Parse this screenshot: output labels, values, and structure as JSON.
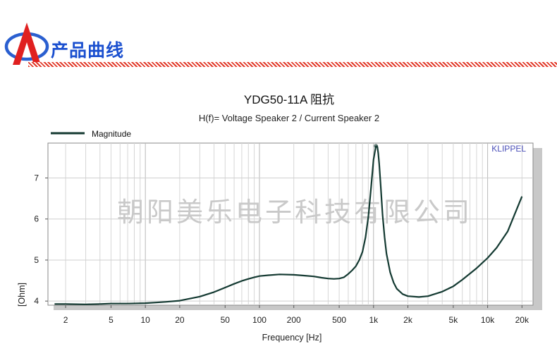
{
  "header": {
    "title": "产品曲线",
    "logo_icon": "company-logo-icon",
    "colors": {
      "title": "#1a4fcf",
      "logo_blue": "#2a5fd0",
      "logo_red": "#e02020",
      "divider": "#e23a2a"
    }
  },
  "chart_data": {
    "type": "line",
    "title": "YDG50-11A 阻抗",
    "subtitle": "H(f)= Voltage Speaker 2 / Current Speaker 2",
    "xlabel": "Frequency [Hz]",
    "ylabel": "[Ohm]",
    "xscale": "log",
    "xlim": [
      1.4,
      25000
    ],
    "ylim": [
      3.9,
      7.85
    ],
    "x_ticks": [
      {
        "v": 2,
        "label": "2"
      },
      {
        "v": 5,
        "label": "5"
      },
      {
        "v": 10,
        "label": "10"
      },
      {
        "v": 20,
        "label": "20"
      },
      {
        "v": 50,
        "label": "50"
      },
      {
        "v": 100,
        "label": "100"
      },
      {
        "v": 200,
        "label": "200"
      },
      {
        "v": 500,
        "label": "500"
      },
      {
        "v": 1000,
        "label": "1k"
      },
      {
        "v": 2000,
        "label": "2k"
      },
      {
        "v": 5000,
        "label": "5k"
      },
      {
        "v": 10000,
        "label": "10k"
      },
      {
        "v": 20000,
        "label": "20k"
      }
    ],
    "y_ticks": [
      4,
      5,
      6,
      7
    ],
    "grid": true,
    "legend_position": "top-left",
    "watermark": "朝阳美乐电子科技有限公司",
    "brand_label": "KLIPPEL",
    "series": [
      {
        "name": "Magnitude",
        "color": "#143a32",
        "x": [
          1.6,
          2,
          3,
          4,
          5,
          7,
          10,
          15,
          20,
          30,
          40,
          50,
          60,
          70,
          80,
          90,
          100,
          120,
          150,
          200,
          250,
          300,
          350,
          400,
          450,
          500,
          550,
          600,
          650,
          700,
          750,
          800,
          850,
          900,
          950,
          1000,
          1050,
          1080,
          1100,
          1120,
          1150,
          1200,
          1250,
          1300,
          1400,
          1500,
          1600,
          1800,
          2000,
          2500,
          3000,
          4000,
          5000,
          6000,
          8000,
          10000,
          12000,
          15000,
          20000
        ],
        "y": [
          3.93,
          3.93,
          3.92,
          3.93,
          3.94,
          3.94,
          3.95,
          3.98,
          4.01,
          4.11,
          4.22,
          4.33,
          4.42,
          4.49,
          4.54,
          4.58,
          4.61,
          4.63,
          4.65,
          4.64,
          4.62,
          4.6,
          4.57,
          4.55,
          4.54,
          4.55,
          4.58,
          4.66,
          4.75,
          4.85,
          5.0,
          5.2,
          5.55,
          6.05,
          6.75,
          7.45,
          7.78,
          7.76,
          7.6,
          7.35,
          6.9,
          6.1,
          5.55,
          5.15,
          4.7,
          4.45,
          4.3,
          4.17,
          4.12,
          4.1,
          4.12,
          4.23,
          4.36,
          4.52,
          4.8,
          5.05,
          5.3,
          5.7,
          6.55
        ]
      }
    ]
  }
}
